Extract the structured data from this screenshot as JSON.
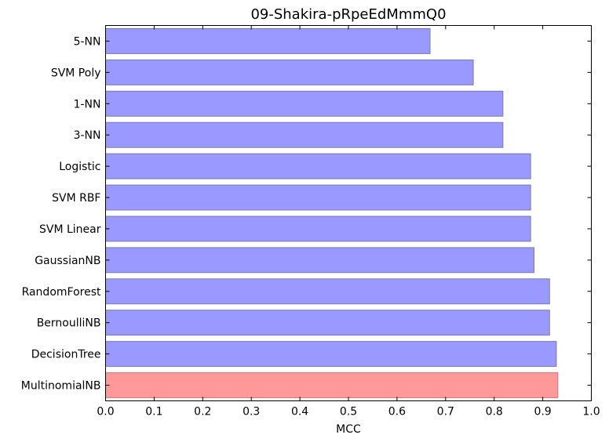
{
  "chart_data": {
    "type": "bar",
    "orientation": "horizontal",
    "title": "09-Shakira-pRpeEdMmmQ0",
    "xlabel": "MCC",
    "ylabel": "",
    "xlim": [
      0.0,
      1.0
    ],
    "xticks": [
      "0.0",
      "0.1",
      "0.2",
      "0.3",
      "0.4",
      "0.5",
      "0.6",
      "0.7",
      "0.8",
      "0.9",
      "1.0"
    ],
    "grid": false,
    "categories": [
      "5-NN",
      "SVM Poly",
      "1-NN",
      "3-NN",
      "Logistic",
      "SVM RBF",
      "SVM Linear",
      "GaussianNB",
      "RandomForest",
      "BernoulliNB",
      "DecisionTree",
      "MultinomialNB"
    ],
    "values": [
      0.668,
      0.757,
      0.818,
      0.818,
      0.875,
      0.875,
      0.875,
      0.882,
      0.914,
      0.914,
      0.928,
      0.931
    ],
    "highlight_index": 11,
    "colors": {
      "bar": "#9999ff",
      "bar_edge": "#7a7aaa",
      "highlight": "#ff9999",
      "highlight_edge": "#cc7a7a",
      "axis": "#000000"
    }
  }
}
